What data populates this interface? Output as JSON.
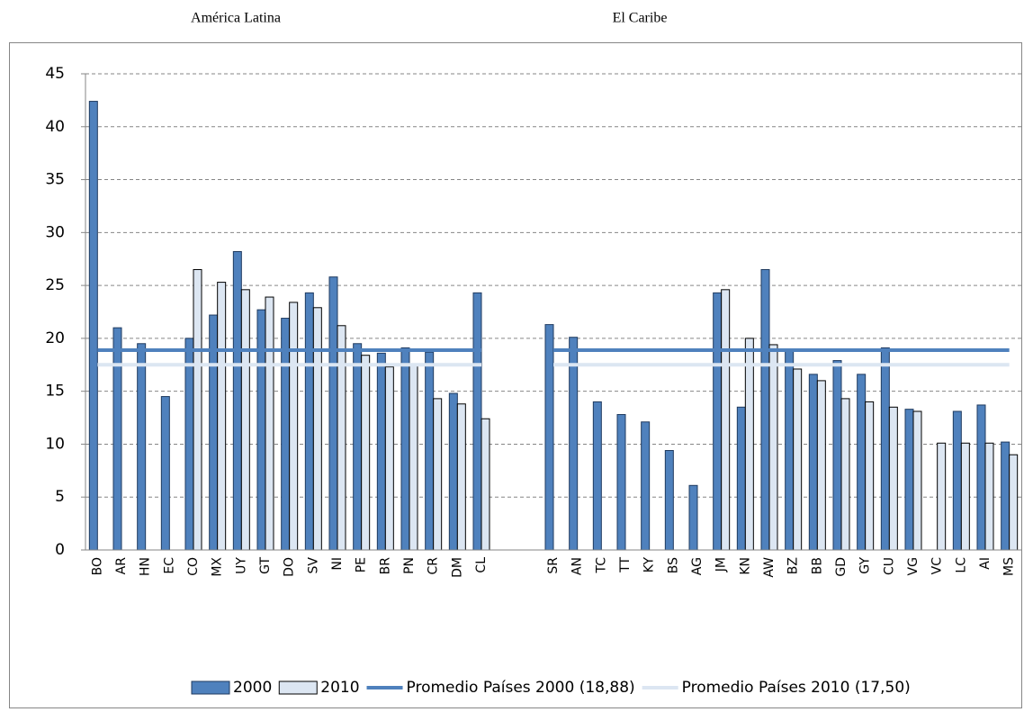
{
  "chart_data": {
    "type": "bar",
    "annotations": [
      "América Latina",
      "El Caribe"
    ],
    "categories": [
      "BO",
      "AR",
      "HN",
      "EC",
      "CO",
      "MX",
      "UY",
      "GT",
      "DO",
      "SV",
      "NI",
      "PE",
      "BR",
      "PN",
      "CR",
      "DM",
      "CL",
      null,
      null,
      "SR",
      "AN",
      "TC",
      "TT",
      "KY",
      "BS",
      "AG",
      "JM",
      "KN",
      "AW",
      "BZ",
      "BB",
      "GD",
      "GY",
      "CU",
      "VG",
      "VC",
      "LC",
      "AI",
      "MS"
    ],
    "series": [
      {
        "name": "2000",
        "color": "#4f81bd",
        "values": [
          42.4,
          21.0,
          19.5,
          14.5,
          20.0,
          22.2,
          28.2,
          22.7,
          21.9,
          24.3,
          25.8,
          19.5,
          18.6,
          19.1,
          18.7,
          14.8,
          24.3,
          null,
          null,
          21.3,
          20.1,
          14.0,
          12.8,
          12.1,
          9.4,
          6.1,
          24.3,
          13.5,
          26.5,
          18.9,
          16.6,
          17.9,
          16.6,
          19.1,
          13.3,
          null,
          13.1,
          13.7,
          10.2
        ]
      },
      {
        "name": "2010",
        "color": "#dce6f2",
        "values": [
          null,
          null,
          null,
          null,
          26.5,
          25.3,
          24.6,
          23.9,
          23.4,
          22.9,
          21.2,
          18.4,
          17.3,
          17.4,
          14.3,
          13.8,
          12.4,
          null,
          null,
          null,
          null,
          null,
          null,
          null,
          null,
          null,
          24.6,
          20.0,
          19.4,
          17.1,
          16.0,
          14.3,
          14.0,
          13.5,
          13.1,
          10.1,
          10.1,
          10.1,
          9.0
        ]
      },
      {
        "name": "Promedio Países 2000 (18,88)",
        "type": "line",
        "color": "#4f81bd",
        "values": [
          18.88,
          18.88,
          18.88,
          18.88,
          18.88,
          18.88,
          18.88,
          18.88,
          18.88,
          18.88,
          18.88,
          18.88,
          18.88,
          18.88,
          18.88,
          18.88,
          18.88,
          null,
          null,
          18.88,
          18.88,
          18.88,
          18.88,
          18.88,
          18.88,
          18.88,
          18.88,
          18.88,
          18.88,
          18.88,
          18.88,
          18.88,
          18.88,
          18.88,
          18.88,
          18.88,
          18.88,
          18.88,
          18.88
        ]
      },
      {
        "name": "Promedio Países 2010 (17,50)",
        "type": "line",
        "color": "#dce6f2",
        "values": [
          17.5,
          17.5,
          17.5,
          17.5,
          17.5,
          17.5,
          17.5,
          17.5,
          17.5,
          17.5,
          17.5,
          17.5,
          17.5,
          17.5,
          17.5,
          17.5,
          17.5,
          null,
          null,
          17.5,
          17.5,
          17.5,
          17.5,
          17.5,
          17.5,
          17.5,
          17.5,
          17.5,
          17.5,
          17.5,
          17.5,
          17.5,
          17.5,
          17.5,
          17.5,
          17.5,
          17.5,
          17.5,
          17.5
        ]
      }
    ],
    "ylim": [
      0,
      45
    ],
    "yticks": [
      0,
      5,
      10,
      15,
      20,
      25,
      30,
      35,
      40,
      45
    ],
    "grid": true,
    "legend": "bottom"
  }
}
